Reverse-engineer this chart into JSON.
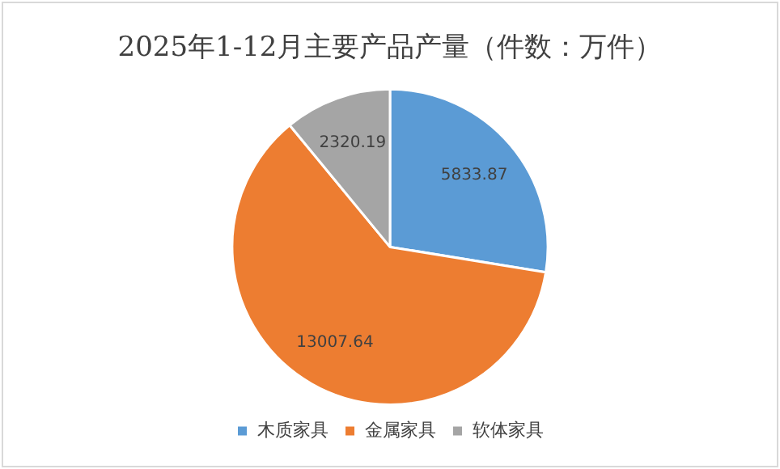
{
  "chart_data": {
    "type": "pie",
    "title": "2025年1-12月主要产品产量（件数：万件）",
    "categories": [
      "木质家具",
      "金属家具",
      "软体家具"
    ],
    "values": [
      5833.87,
      13007.64,
      2320.19
    ],
    "colors": [
      "#5b9bd5",
      "#ed7d31",
      "#a5a5a5"
    ],
    "data_labels": true,
    "legend": "bottom"
  }
}
